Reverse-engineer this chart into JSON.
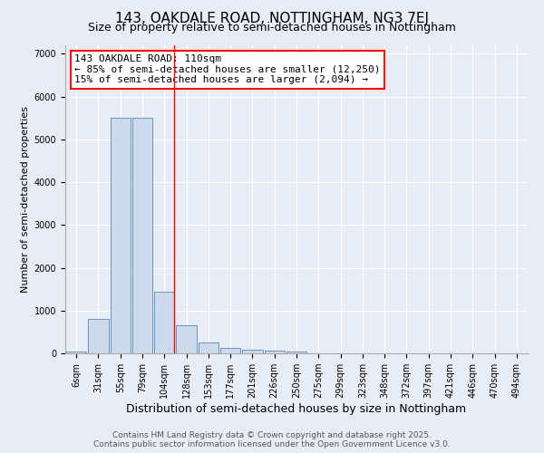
{
  "title": "143, OAKDALE ROAD, NOTTINGHAM, NG3 7EJ",
  "subtitle": "Size of property relative to semi-detached houses in Nottingham",
  "xlabel": "Distribution of semi-detached houses by size in Nottingham",
  "ylabel": "Number of semi-detached properties",
  "bar_labels": [
    "6sqm",
    "31sqm",
    "55sqm",
    "79sqm",
    "104sqm",
    "128sqm",
    "153sqm",
    "177sqm",
    "201sqm",
    "226sqm",
    "250sqm",
    "275sqm",
    "299sqm",
    "323sqm",
    "348sqm",
    "372sqm",
    "397sqm",
    "421sqm",
    "446sqm",
    "470sqm",
    "494sqm"
  ],
  "bar_values": [
    50,
    800,
    5500,
    5500,
    1450,
    650,
    260,
    130,
    80,
    55,
    50,
    0,
    0,
    0,
    0,
    0,
    0,
    0,
    0,
    0,
    0
  ],
  "bar_color": "#ccdaec",
  "bar_edge_color": "#5588bb",
  "annotation_line1": "143 OAKDALE ROAD: 110sqm",
  "annotation_line2": "← 85% of semi-detached houses are smaller (12,250)",
  "annotation_line3": "15% of semi-detached houses are larger (2,094) →",
  "ylim": [
    0,
    7200
  ],
  "background_color": "#e8edf5",
  "grid_color": "#ffffff",
  "footer_line1": "Contains HM Land Registry data © Crown copyright and database right 2025.",
  "footer_line2": "Contains public sector information licensed under the Open Government Licence v3.0.",
  "title_fontsize": 11,
  "subtitle_fontsize": 9,
  "xlabel_fontsize": 9,
  "ylabel_fontsize": 8,
  "tick_fontsize": 7,
  "footer_fontsize": 6.5,
  "annotation_fontsize": 8
}
